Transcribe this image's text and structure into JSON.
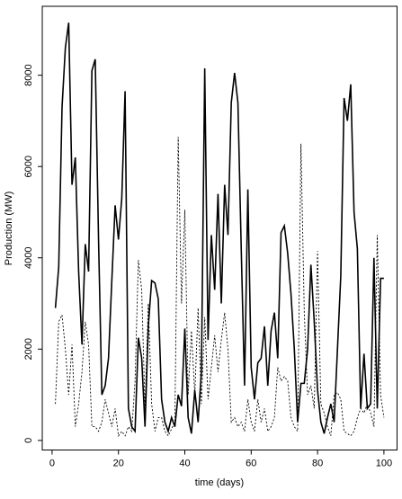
{
  "chart_data": {
    "type": "line",
    "x_label": "time (days)",
    "y_label": "Production (MW)",
    "x": [
      1,
      2,
      3,
      4,
      5,
      6,
      7,
      8,
      9,
      10,
      11,
      12,
      13,
      14,
      15,
      16,
      17,
      18,
      19,
      20,
      21,
      22,
      23,
      24,
      25,
      26,
      27,
      28,
      29,
      30,
      31,
      32,
      33,
      34,
      35,
      36,
      37,
      38,
      39,
      40,
      41,
      42,
      43,
      44,
      45,
      46,
      47,
      48,
      49,
      50,
      51,
      52,
      53,
      54,
      55,
      56,
      57,
      58,
      59,
      60,
      61,
      62,
      63,
      64,
      65,
      66,
      67,
      68,
      69,
      70,
      71,
      72,
      73,
      74,
      75,
      76,
      77,
      78,
      79,
      80,
      81,
      82,
      83,
      84,
      85,
      86,
      87,
      88,
      89,
      90,
      91,
      92,
      93,
      94,
      95,
      96,
      97,
      98,
      99,
      100
    ],
    "series": [
      {
        "color": "#000000",
        "linestyle": "solid",
        "values": [
          2900,
          3800,
          7300,
          8600,
          9150,
          5600,
          6200,
          3700,
          2100,
          4300,
          3700,
          8100,
          8350,
          4400,
          1000,
          1200,
          1800,
          3500,
          5150,
          4400,
          5300,
          7650,
          700,
          300,
          200,
          2250,
          1800,
          300,
          2500,
          3500,
          3450,
          3100,
          900,
          400,
          200,
          500,
          300,
          1000,
          750,
          2450,
          500,
          150,
          1100,
          400,
          1500,
          8150,
          2200,
          4500,
          3300,
          5400,
          3000,
          5600,
          4500,
          7400,
          8050,
          7400,
          4200,
          1200,
          5500,
          1600,
          900,
          1700,
          1800,
          2500,
          1200,
          2400,
          2800,
          1800,
          4550,
          4700,
          4100,
          3200,
          2000,
          400,
          1250,
          1250,
          2000,
          3850,
          2600,
          1100,
          400,
          150,
          500,
          800,
          400,
          2000,
          3600,
          7500,
          7000,
          7800,
          5000,
          4200,
          700,
          1900,
          700,
          800,
          4000,
          700,
          3550,
          3550
        ]
      },
      {
        "color": "#000000",
        "linestyle": "dotted",
        "values": [
          800,
          2600,
          2750,
          2000,
          1000,
          2100,
          300,
          800,
          1500,
          2600,
          2100,
          300,
          300,
          200,
          400,
          900,
          600,
          300,
          700,
          100,
          200,
          100,
          300,
          200,
          1300,
          3950,
          3300,
          700,
          3000,
          800,
          200,
          500,
          500,
          200,
          100,
          250,
          400,
          6650,
          3000,
          5050,
          1000,
          2400,
          1000,
          2900,
          800,
          2700,
          900,
          1600,
          2300,
          1500,
          2200,
          2800,
          2000,
          400,
          500,
          300,
          400,
          200,
          900,
          400,
          200,
          900,
          400,
          700,
          200,
          300,
          500,
          1600,
          1300,
          1400,
          1300,
          500,
          300,
          200,
          6500,
          2800,
          1000,
          1200,
          700,
          4150,
          800,
          600,
          300,
          100,
          1000,
          1050,
          900,
          200,
          150,
          100,
          200,
          500,
          700,
          600,
          800,
          600,
          300,
          4500,
          1000,
          500
        ]
      }
    ],
    "xlim": [
      -2.96,
      103.96
    ],
    "ylim": [
      -210,
      9510
    ],
    "xticks": [
      0,
      20,
      40,
      60,
      80,
      100
    ],
    "yticks": [
      0,
      2000,
      4000,
      6000,
      8000
    ]
  }
}
